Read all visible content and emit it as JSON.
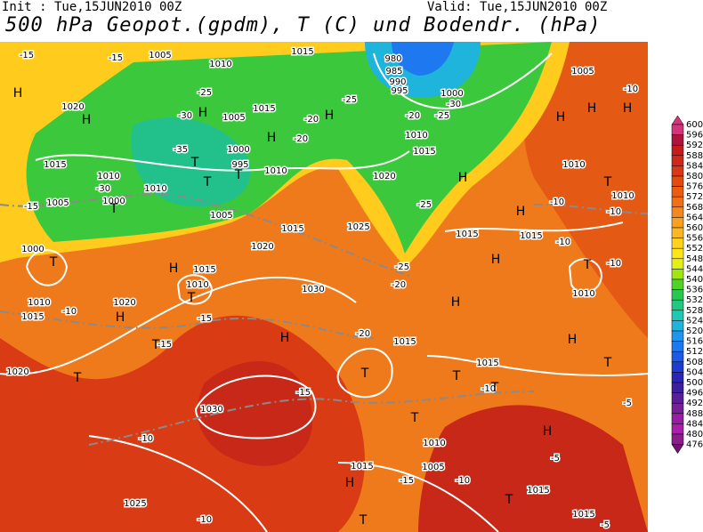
{
  "header": {
    "init": "Init : Tue,15JUN2010 00Z",
    "valid": "Valid: Tue,15JUN2010 00Z",
    "title": "500 hPa Geopot.(gpdm), T (C) und Bodendr. (hPa)"
  },
  "pressure_systems": [
    "H",
    "H",
    "H",
    "H",
    "H",
    "T",
    "T",
    "T",
    "T",
    "T",
    "H",
    "T",
    "H",
    "T",
    "H",
    "T",
    "T",
    "H",
    "H",
    "H",
    "T",
    "H",
    "H",
    "H",
    "H",
    "T",
    "H",
    "T",
    "T",
    "T",
    "T",
    "H",
    "H",
    "T",
    "T"
  ],
  "isobar_labels": [
    "1005",
    "1010",
    "1015",
    "1005",
    "1000",
    "1020",
    "1005",
    "1015",
    "1000",
    "995",
    "1010",
    "1015",
    "1010",
    "1010",
    "1005",
    "1000",
    "1005",
    "1015",
    "1020",
    "1010",
    "1015",
    "1010",
    "1010",
    "1025",
    "1015",
    "1015",
    "1020",
    "1000",
    "1015",
    "1010",
    "1010",
    "1015",
    "1020",
    "1030",
    "1015",
    "1015",
    "1020",
    "1030",
    "1010",
    "1015",
    "1005",
    "1015",
    "1025",
    "1015",
    "1010",
    "980",
    "985",
    "990",
    "995"
  ],
  "isotherm_labels": [
    "-15",
    "-15",
    "-25",
    "-30",
    "-35",
    "-20",
    "-20",
    "-25",
    "-20",
    "-30",
    "-25",
    "-10",
    "-15",
    "-30",
    "-25",
    "-10",
    "-10",
    "-10",
    "-10",
    "-25",
    "-20",
    "-15",
    "-10",
    "-15",
    "-20",
    "-15",
    "-10",
    "-10",
    "-5",
    "-5",
    "-10",
    "-15",
    "-10",
    "-5"
  ],
  "colorbar": [
    {
      "label": "600",
      "color": "#d4357a"
    },
    {
      "label": "596",
      "color": "#b0143c"
    },
    {
      "label": "592",
      "color": "#c41c1c"
    },
    {
      "label": "588",
      "color": "#d02818"
    },
    {
      "label": "584",
      "color": "#da3814"
    },
    {
      "label": "580",
      "color": "#e24a10"
    },
    {
      "label": "576",
      "color": "#ea5c10"
    },
    {
      "label": "572",
      "color": "#f07018"
    },
    {
      "label": "568",
      "color": "#f4881c"
    },
    {
      "label": "564",
      "color": "#f8a020"
    },
    {
      "label": "560",
      "color": "#fcb824"
    },
    {
      "label": "556",
      "color": "#ffd21e"
    },
    {
      "label": "552",
      "color": "#ffe61a"
    },
    {
      "label": "548",
      "color": "#e2f014"
    },
    {
      "label": "544",
      "color": "#a0e614"
    },
    {
      "label": "540",
      "color": "#50d228"
    },
    {
      "label": "536",
      "color": "#28c850"
    },
    {
      "label": "532",
      "color": "#20c882"
    },
    {
      "label": "528",
      "color": "#1ec8b4"
    },
    {
      "label": "524",
      "color": "#1eb4dc"
    },
    {
      "label": "520",
      "color": "#1e96f0"
    },
    {
      "label": "516",
      "color": "#1e78f0"
    },
    {
      "label": "512",
      "color": "#1e5ae6"
    },
    {
      "label": "508",
      "color": "#1e3cd2"
    },
    {
      "label": "504",
      "color": "#2828b4"
    },
    {
      "label": "500",
      "color": "#3c1ea0"
    },
    {
      "label": "496",
      "color": "#5a1e96"
    },
    {
      "label": "492",
      "color": "#781e96"
    },
    {
      "label": "488",
      "color": "#961ea0"
    },
    {
      "label": "484",
      "color": "#aa1eaa"
    },
    {
      "label": "480",
      "color": "#8c1e8c"
    },
    {
      "label": "476",
      "color": "#6e146e"
    }
  ]
}
